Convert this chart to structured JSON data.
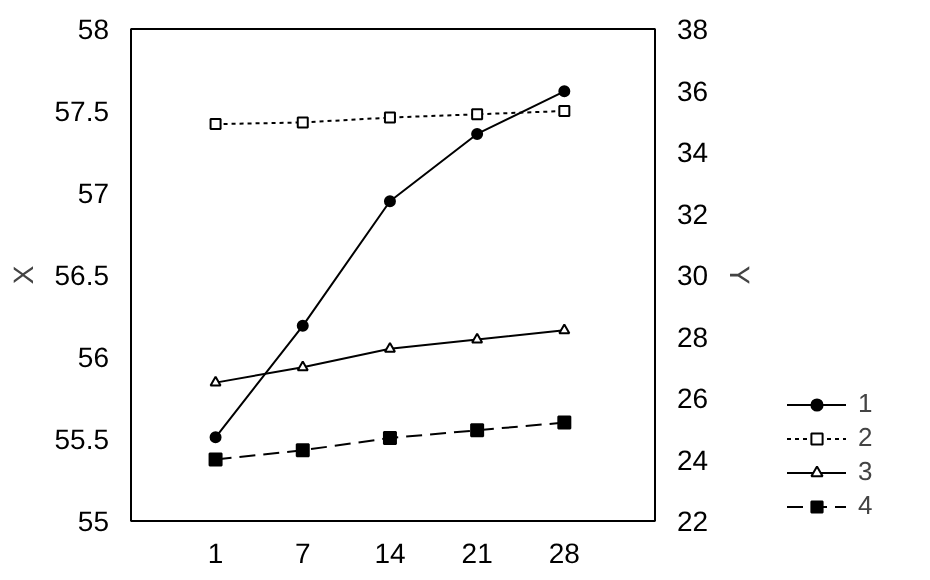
{
  "chart_data": {
    "type": "line",
    "xlabel": null,
    "ylabel": "X",
    "y2label": "Y",
    "categories": [
      "1",
      "7",
      "14",
      "21",
      "28"
    ],
    "series": [
      {
        "name": "1",
        "color": "#000000",
        "marker": "circle",
        "line_style": "solid",
        "values": [
          55.51,
          56.19,
          56.95,
          57.36,
          57.62
        ]
      },
      {
        "name": "2",
        "color": "#000000",
        "marker": "square",
        "line_style": "dotted",
        "values": [
          57.42,
          57.43,
          57.46,
          57.48,
          57.5
        ]
      },
      {
        "name": "3",
        "color": "#000000",
        "marker": "triangle",
        "line_style": "solid",
        "axis": "y2",
        "values": [
          26.5,
          27.0,
          27.6,
          27.9,
          28.2
        ]
      },
      {
        "name": "4",
        "color": "#000000",
        "marker": "square",
        "line_style": "dashed",
        "axis": "y2",
        "values": [
          24.0,
          24.3,
          24.7,
          24.95,
          25.2
        ]
      }
    ],
    "ylim": [
      55,
      58
    ],
    "yticks": [
      55,
      55.5,
      56,
      56.5,
      57,
      57.5,
      58
    ],
    "y2lim": [
      22,
      38
    ],
    "y2ticks": [
      22,
      24,
      26,
      28,
      30,
      32,
      34,
      36,
      38
    ],
    "legend": "bottom right"
  }
}
